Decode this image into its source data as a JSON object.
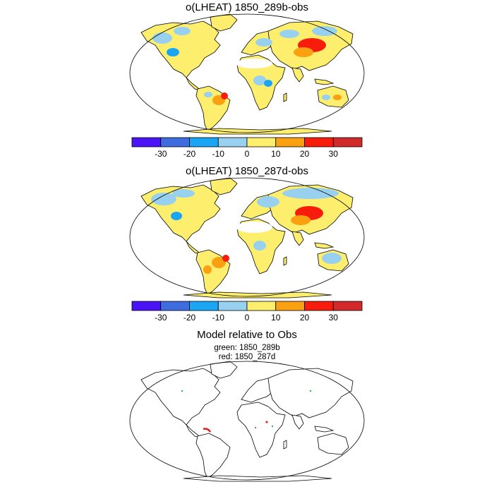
{
  "panels": [
    {
      "title": "o(LHEAT) 1850_289b-obs"
    },
    {
      "title": "o(LHEAT) 1850_287d-obs"
    }
  ],
  "colorbar": {
    "colors": [
      "#4a14f6",
      "#3f6de0",
      "#1aa6f5",
      "#97d1ef",
      "#fdee6d",
      "#fba010",
      "#f81c0c",
      "#d22a2a"
    ],
    "tick_labels": [
      "-30",
      "-20",
      "-10",
      "0",
      "10",
      "20",
      "30"
    ]
  },
  "relative_panel": {
    "title": "Model relative to Obs",
    "line1": "green: 1850_289b",
    "line2": "red: 1850_287d",
    "colors": {
      "green": "#2fb84a",
      "red": "#e01818"
    }
  },
  "map_colors": {
    "ocean": "#ffffff",
    "outline": "#000000"
  }
}
